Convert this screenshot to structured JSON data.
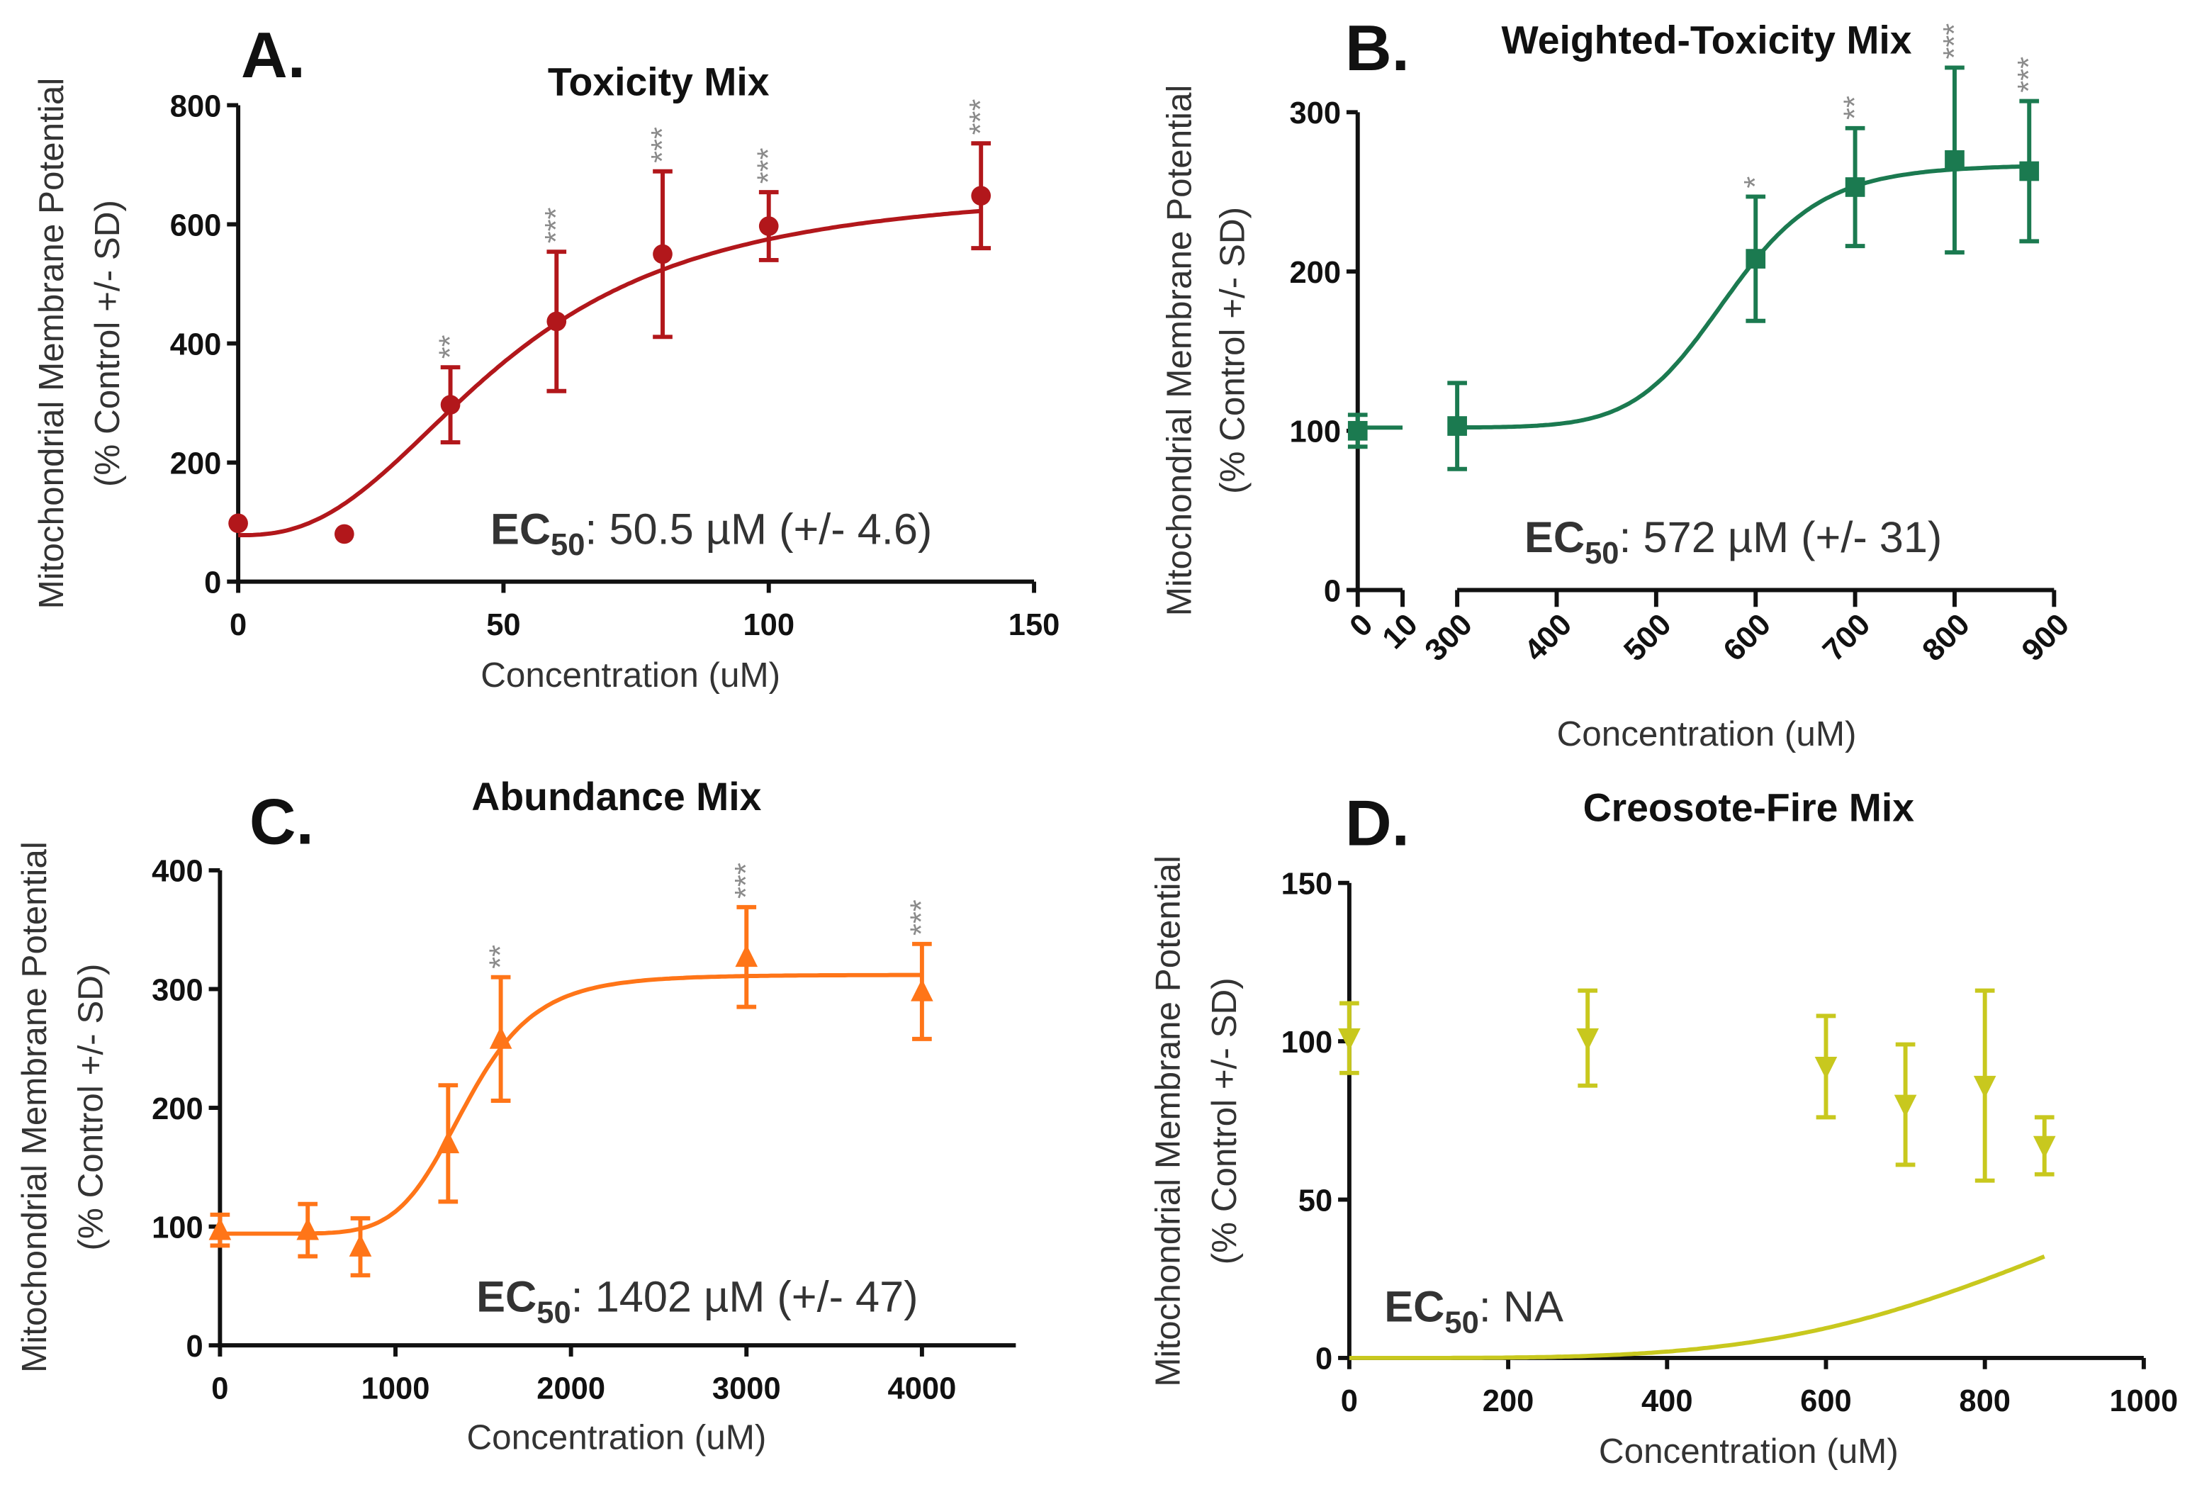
{
  "chart_data": [
    {
      "type": "scatter",
      "panel_label": "A.",
      "title": "Toxicity Mix",
      "xlabel": "Concentration (uM)",
      "ylabel": [
        "Mitochondrial Membrane Potential",
        "(% Control +/- SD)"
      ],
      "ec50": {
        "label": "EC",
        "sub": "50",
        "value": ": 50.5 µM (+/- 4.6)"
      },
      "xlim": [
        0,
        150
      ],
      "ylim": [
        0,
        800
      ],
      "xticks": [
        "0",
        "50",
        "100",
        "150"
      ],
      "yticks": [
        "0",
        "200",
        "400",
        "600",
        "800"
      ],
      "color": "#b2171b",
      "marker": "circle",
      "points": [
        {
          "x": 0,
          "y": 98,
          "sd": 0,
          "sig": ""
        },
        {
          "x": 20,
          "y": 80,
          "sd": 0,
          "sig": ""
        },
        {
          "x": 40,
          "y": 297,
          "sd": 63,
          "sig": "**"
        },
        {
          "x": 60,
          "y": 437,
          "sd": 117,
          "sig": "***"
        },
        {
          "x": 80,
          "y": 550,
          "sd": 139,
          "sig": "***"
        },
        {
          "x": 100,
          "y": 597,
          "sd": 57,
          "sig": "***"
        },
        {
          "x": 140,
          "y": 648,
          "sd": 88,
          "sig": "***"
        }
      ]
    },
    {
      "type": "scatter",
      "panel_label": "B.",
      "title": "Weighted-Toxicity Mix",
      "xlabel": "Concentration (uM)",
      "ylabel": [
        "Mitochondrial Membrane Potential",
        "(% Control +/- SD)"
      ],
      "ec50": {
        "label": "EC",
        "sub": "50",
        "value": ": 572 µM (+/- 31)"
      },
      "xlim": [
        0,
        900
      ],
      "x_axis_break": [
        10,
        300
      ],
      "ylim": [
        0,
        350
      ],
      "xticks": [
        "0",
        "10",
        "300",
        "400",
        "500",
        "600",
        "700",
        "800",
        "900"
      ],
      "yticks": [
        "0",
        "100",
        "200",
        "300"
      ],
      "color": "#1b7a50",
      "marker": "square",
      "points": [
        {
          "x": 0,
          "y": 100,
          "sd": 10,
          "sig": ""
        },
        {
          "x": 300,
          "y": 103,
          "sd": 27,
          "sig": ""
        },
        {
          "x": 600,
          "y": 208,
          "sd": 39,
          "sig": "*"
        },
        {
          "x": 700,
          "y": 253,
          "sd": 37,
          "sig": "**"
        },
        {
          "x": 800,
          "y": 270,
          "sd": 58,
          "sig": "***"
        },
        {
          "x": 875,
          "y": 263,
          "sd": 44,
          "sig": "***"
        }
      ]
    },
    {
      "type": "scatter",
      "panel_label": "C.",
      "title": "Abundance Mix",
      "xlabel": "Concentration (uM)",
      "ylabel": [
        "Mitochondrial Membrane Potential",
        "(% Control +/- SD)"
      ],
      "ec50": {
        "label": "EC",
        "sub": "50",
        "value": ": 1402 µM (+/- 47)"
      },
      "xlim": [
        0,
        4500
      ],
      "ylim": [
        0,
        400
      ],
      "xticks": [
        "0",
        "1000",
        "2000",
        "3000",
        "4000"
      ],
      "yticks": [
        "0",
        "100",
        "200",
        "300",
        "400"
      ],
      "color": "#ff7518",
      "marker": "triangle-up",
      "points": [
        {
          "x": 0,
          "y": 97,
          "sd": 13,
          "sig": ""
        },
        {
          "x": 500,
          "y": 97,
          "sd": 22,
          "sig": ""
        },
        {
          "x": 800,
          "y": 83,
          "sd": 24,
          "sig": ""
        },
        {
          "x": 1300,
          "y": 170,
          "sd": 49,
          "sig": ""
        },
        {
          "x": 1600,
          "y": 258,
          "sd": 52,
          "sig": "**"
        },
        {
          "x": 3000,
          "y": 327,
          "sd": 42,
          "sig": "***"
        },
        {
          "x": 4000,
          "y": 298,
          "sd": 40,
          "sig": "***"
        }
      ]
    },
    {
      "type": "scatter",
      "panel_label": "D.",
      "title": "Creosote-Fire Mix",
      "xlabel": "Concentration (uM)",
      "ylabel": [
        "Mitochondrial Membrane Potential",
        "(% Control +/- SD)"
      ],
      "ec50": {
        "label": "EC",
        "sub": "50",
        "value": ": NA"
      },
      "xlim": [
        0,
        1000
      ],
      "ylim": [
        0,
        150
      ],
      "xticks": [
        "0",
        "200",
        "400",
        "600",
        "800",
        "1000"
      ],
      "yticks": [
        "0",
        "50",
        "100",
        "150"
      ],
      "color": "#c8c81e",
      "marker": "triangle-down",
      "points": [
        {
          "x": 0,
          "y": 101,
          "sd": 11,
          "sig": ""
        },
        {
          "x": 300,
          "y": 101,
          "sd": 15,
          "sig": ""
        },
        {
          "x": 600,
          "y": 92,
          "sd": 16,
          "sig": ""
        },
        {
          "x": 700,
          "y": 80,
          "sd": 19,
          "sig": ""
        },
        {
          "x": 800,
          "y": 86,
          "sd": 30,
          "sig": ""
        },
        {
          "x": 875,
          "y": 67,
          "sd": 9,
          "sig": ""
        }
      ]
    }
  ]
}
